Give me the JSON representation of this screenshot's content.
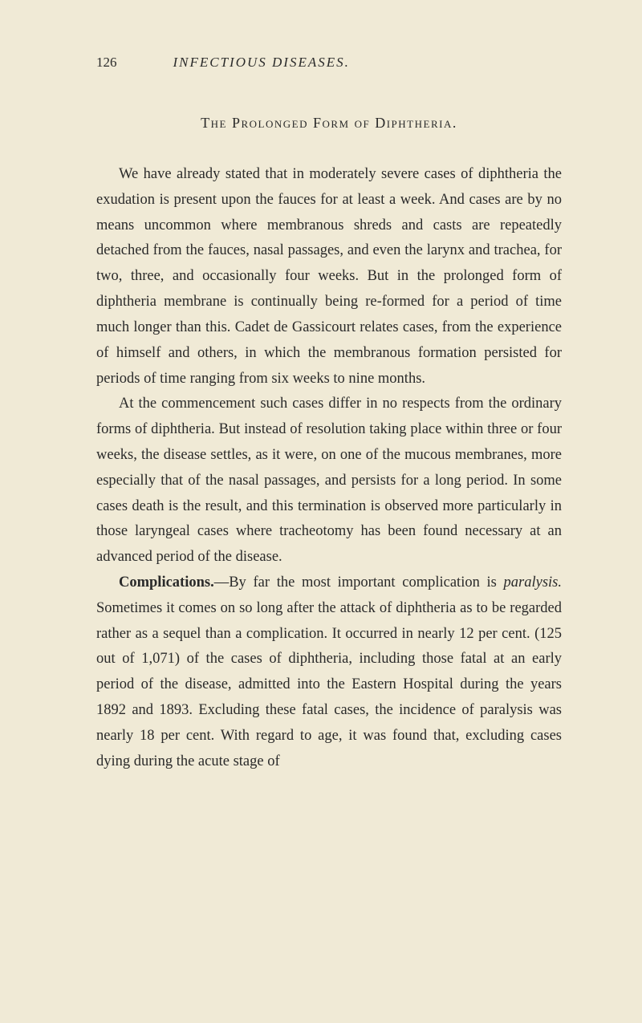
{
  "page": {
    "number": "126",
    "running_title": "INFECTIOUS DISEASES.",
    "background_color": "#f0ead6",
    "text_color": "#2a2a2a",
    "font_family": "Georgia, serif",
    "body_fontsize": 18.5,
    "line_height": 1.72
  },
  "section_heading": "The Prolonged Form of Diphtheria.",
  "paragraphs": {
    "p1": "We have already stated that in moderately severe cases of diphtheria the exudation is present upon the fauces for at least a week. And cases are by no means uncommon where membranous shreds and casts are repeatedly detached from the fauces, nasal passages, and even the larynx and trachea, for two, three, and occasionally four weeks. But in the prolonged form of diphtheria membrane is continually being re-formed for a period of time much longer than this. Cadet de Gassicourt relates cases, from the experience of himself and others, in which the membranous formation persisted for periods of time ranging from six weeks to nine months.",
    "p2": "At the commencement such cases differ in no respects from the ordinary forms of diphtheria. But instead of resolution taking place within three or four weeks, the disease settles, as it were, on one of the mucous membranes, more especially that of the nasal passages, and persists for a long period. In some cases death is the result, and this termination is observed more particularly in those laryngeal cases where tracheotomy has been found necessary at an advanced period of the disease.",
    "p3_runin": "Complications.",
    "p3_a": "—By far the most important complication is ",
    "p3_italic": "paralysis.",
    "p3_b": " Sometimes it comes on so long after the attack of diphtheria as to be regarded rather as a sequel than a complication. It occurred in nearly 12 per cent. (125 out of 1,071) of the cases of diphtheria, including those fatal at an early period of the disease, admitted into the Eastern Hospital during the years 1892 and 1893. Excluding these fatal cases, the incidence of paralysis was nearly 18 per cent. With regard to age, it was found that, excluding cases dying during the acute stage of"
  }
}
